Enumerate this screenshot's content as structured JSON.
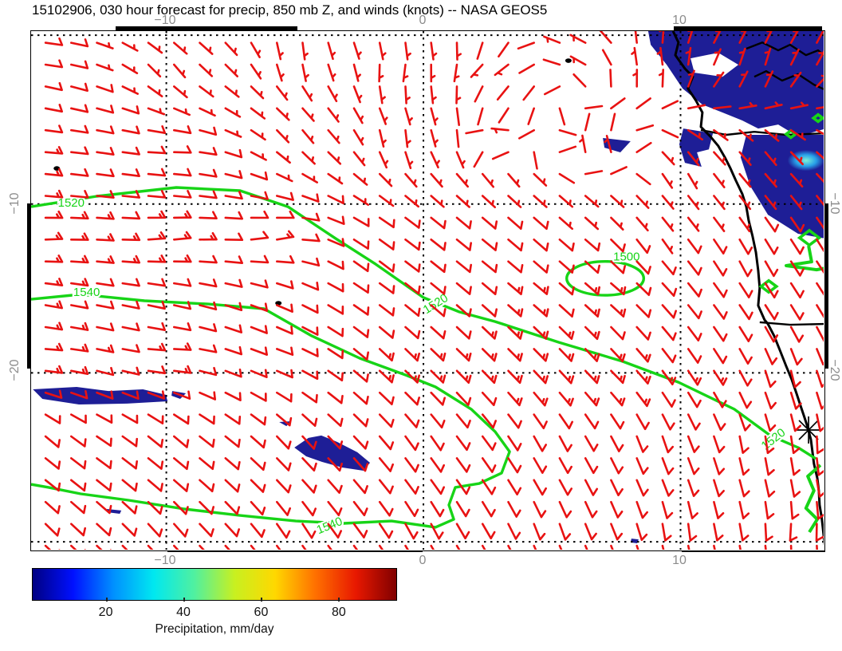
{
  "title": "15102906, 030 hour forecast for precip, 850 mb Z, and winds (knots) -- NASA GEOS5",
  "axes": {
    "x_ticks": [
      {
        "label": "−10",
        "lon": -10
      },
      {
        "label": "0",
        "lon": 0
      },
      {
        "label": "10",
        "lon": 10
      }
    ],
    "y_ticks": [
      {
        "label": "−10",
        "lat": -10
      },
      {
        "label": "−20",
        "lat": -20
      }
    ],
    "grid_lons": [
      -10,
      0,
      10
    ],
    "grid_lats": [
      0,
      -10,
      -20,
      -30
    ]
  },
  "colorbar": {
    "caption": "Precipitation, mm/day",
    "tick_values": [
      20,
      40,
      60,
      80
    ],
    "value_range": [
      1,
      95
    ],
    "gradient": [
      "#000082",
      "#0010ff",
      "#0090ff",
      "#00e8f0",
      "#50f0a0",
      "#c8f020",
      "#ffd800",
      "#ff7000",
      "#e81800",
      "#800000"
    ]
  },
  "chart_data": {
    "type": "weather-map",
    "model": "NASA GEOS5",
    "forecast_hour": "030",
    "init": "15102906",
    "fields": [
      "precipitation shading (mm/day)",
      "850 mb geopotential height contours (m)",
      "wind barbs (knots)"
    ],
    "extent": {
      "lon": [
        -15.26,
        15.66
      ],
      "lat": [
        0.24,
        -30.61
      ]
    },
    "colors": {
      "barb": "#e81212",
      "contour": "#17d417",
      "precip": "#1e1e96",
      "coast": "#000000",
      "label_gray": "#8c8c8c"
    },
    "contour_levels": [
      1500,
      1520,
      1540
    ],
    "contours": [
      {
        "level": 1520,
        "points": [
          [
            -15.26,
            -10.16
          ],
          [
            -12.71,
            -9.54
          ],
          [
            -9.61,
            -9.02
          ],
          [
            -7.13,
            -9.21
          ],
          [
            -5.27,
            -10.16
          ],
          [
            -3.41,
            -12.05
          ],
          [
            -1.86,
            -13.56
          ],
          [
            0.0,
            -15.54
          ],
          [
            1.4,
            -16.39
          ],
          [
            2.79,
            -16.96
          ],
          [
            5.27,
            -18.19
          ],
          [
            7.75,
            -19.32
          ],
          [
            9.92,
            -20.55
          ],
          [
            12.09,
            -22.15
          ],
          [
            13.49,
            -23.71
          ],
          [
            14.57,
            -24.42
          ],
          [
            15.26,
            -25.08
          ]
        ],
        "labels": [
          {
            "lon": -13.7,
            "lat": -10.15,
            "rot": 0
          },
          {
            "lon": 0.55,
            "lat": -16.1,
            "rot": -32
          },
          {
            "lon": 13.7,
            "lat": -24.1,
            "rot": -38
          }
        ]
      },
      {
        "level": 1540,
        "points": [
          [
            -15.26,
            -15.64
          ],
          [
            -13.33,
            -15.35
          ],
          [
            -10.85,
            -15.73
          ],
          [
            -8.37,
            -15.92
          ],
          [
            -6.2,
            -16.2
          ],
          [
            -4.34,
            -17.81
          ],
          [
            -2.48,
            -19.13
          ],
          [
            -0.62,
            -20.17
          ],
          [
            0.47,
            -20.83
          ],
          [
            1.86,
            -22.15
          ],
          [
            2.79,
            -23.48
          ],
          [
            3.35,
            -24.66
          ],
          [
            3.04,
            -25.93
          ],
          [
            2.17,
            -26.55
          ],
          [
            1.24,
            -26.78
          ],
          [
            0.99,
            -27.82
          ],
          [
            1.18,
            -28.67
          ],
          [
            0.47,
            -29.14
          ],
          [
            -1.24,
            -28.77
          ],
          [
            -3.1,
            -28.91
          ],
          [
            -4.96,
            -28.77
          ],
          [
            -7.13,
            -28.44
          ],
          [
            -9.3,
            -28.06
          ],
          [
            -11.47,
            -27.54
          ],
          [
            -13.33,
            -27.16
          ],
          [
            -14.58,
            -26.78
          ],
          [
            -15.26,
            -26.6
          ]
        ],
        "labels": [
          {
            "lon": -13.1,
            "lat": -15.45,
            "rot": 0
          },
          {
            "lon": -3.6,
            "lat": -29.25,
            "rot": -22
          }
        ]
      },
      {
        "level": 1500,
        "ellipse": {
          "lon": 7.07,
          "lat": -14.4,
          "rx": 1.5,
          "ry": 1.0
        },
        "labels": [
          {
            "lon": 7.9,
            "lat": -13.35,
            "rot": 0
          }
        ]
      }
    ],
    "contour_fragments": [
      {
        "points": [
          [
            14.98,
            -12.47
          ],
          [
            15.1,
            -13.42
          ],
          [
            14.11,
            -13.65
          ],
          [
            15.29,
            -13.89
          ],
          [
            15.6,
            -13.8
          ]
        ]
      },
      {
        "points": [
          [
            15.44,
            -25.46
          ],
          [
            14.95,
            -26.12
          ],
          [
            15.19,
            -26.97
          ],
          [
            14.88,
            -28.01
          ],
          [
            15.32,
            -28.67
          ],
          [
            15.01,
            -29.43
          ]
        ]
      },
      {
        "diamonds": [
          [
            15.01,
            -12.0,
            0.38
          ],
          [
            13.43,
            -14.88,
            0.3
          ],
          [
            15.35,
            -4.91,
            0.18
          ],
          [
            14.29,
            -5.86,
            0.18
          ]
        ]
      }
    ],
    "precip_patches": [
      {
        "name": "amazon-congo-north-blob",
        "points": [
          [
            8.74,
            0.24
          ],
          [
            15.66,
            0.24
          ],
          [
            15.66,
            -5.53
          ],
          [
            14.57,
            -6.0
          ],
          [
            13.8,
            -5.29
          ],
          [
            13.02,
            -5.53
          ],
          [
            12.4,
            -5.05
          ],
          [
            11.63,
            -4.58
          ],
          [
            10.85,
            -4.11
          ],
          [
            10.08,
            -3.16
          ],
          [
            9.46,
            -1.75
          ],
          [
            8.84,
            -0.57
          ]
        ],
        "hole": [
          [
            10.39,
            -1.37
          ],
          [
            11.47,
            -1.04
          ],
          [
            12.25,
            -1.75
          ],
          [
            11.63,
            -2.46
          ],
          [
            10.54,
            -2.22
          ]
        ]
      },
      {
        "name": "congo-basin-blob",
        "points": [
          [
            12.56,
            -5.9
          ],
          [
            15.66,
            -5.9
          ],
          [
            15.66,
            -12.05
          ],
          [
            14.57,
            -11.76
          ],
          [
            13.4,
            -10.63
          ],
          [
            12.71,
            -8.93
          ],
          [
            12.34,
            -7.23
          ]
        ]
      },
      {
        "name": "coastal-patch",
        "points": [
          [
            10.11,
            -5.53
          ],
          [
            11.26,
            -5.81
          ],
          [
            11.1,
            -6.76
          ],
          [
            10.64,
            -6.94
          ],
          [
            10.82,
            -7.79
          ],
          [
            10.17,
            -7.56
          ],
          [
            9.95,
            -6.47
          ]
        ]
      },
      {
        "name": "small-patch-gulf",
        "points": [
          [
            6.98,
            -6.09
          ],
          [
            8.06,
            -6.28
          ],
          [
            7.66,
            -6.94
          ],
          [
            7.04,
            -6.66
          ]
        ]
      },
      {
        "name": "west-strip",
        "points": [
          [
            -15.19,
            -20.97
          ],
          [
            -13.49,
            -20.83
          ],
          [
            -12.25,
            -21.07
          ],
          [
            -10.91,
            -20.97
          ],
          [
            -10.02,
            -21.3
          ],
          [
            -9.95,
            -21.68
          ],
          [
            -11.53,
            -21.82
          ],
          [
            -13.4,
            -21.87
          ],
          [
            -14.82,
            -21.54
          ]
        ]
      },
      {
        "name": "west-strip-bit",
        "points": [
          [
            -9.77,
            -21.07
          ],
          [
            -9.24,
            -21.21
          ],
          [
            -9.46,
            -21.54
          ],
          [
            -9.8,
            -21.35
          ]
        ]
      },
      {
        "name": "central-fish-blob",
        "points": [
          [
            -5.02,
            -24.42
          ],
          [
            -4.47,
            -23.85
          ],
          [
            -3.97,
            -23.71
          ],
          [
            -3.35,
            -24.09
          ],
          [
            -2.57,
            -24.7
          ],
          [
            -2.08,
            -25.32
          ],
          [
            -2.33,
            -25.79
          ],
          [
            -3.16,
            -25.6
          ],
          [
            -3.94,
            -25.27
          ],
          [
            -4.56,
            -24.94
          ]
        ]
      },
      {
        "name": "fish-fin",
        "points": [
          [
            -5.61,
            -22.91
          ],
          [
            -5.15,
            -22.86
          ],
          [
            -5.33,
            -23.15
          ]
        ]
      },
      {
        "name": "small-dash-sw",
        "points": [
          [
            -12.31,
            -28.06
          ],
          [
            -11.75,
            -28.15
          ],
          [
            -11.81,
            -28.34
          ],
          [
            -12.31,
            -28.25
          ]
        ]
      },
      {
        "name": "small-dot-se",
        "points": [
          [
            8.09,
            -29.81
          ],
          [
            8.37,
            -29.86
          ],
          [
            8.31,
            -30.09
          ],
          [
            8.06,
            -30.04
          ]
        ]
      }
    ],
    "precip_glow": {
      "lon": 14.88,
      "lat": -7.42,
      "rx": 0.72,
      "ry": 0.62
    },
    "coastline": [
      [
        9.71,
        0.24
      ],
      [
        9.92,
        -0.43
      ],
      [
        9.8,
        -1.18
      ],
      [
        10.17,
        -1.98
      ],
      [
        10.48,
        -2.46
      ],
      [
        10.29,
        -3.16
      ],
      [
        10.6,
        -3.87
      ],
      [
        10.85,
        -4.58
      ],
      [
        10.79,
        -5.43
      ],
      [
        11.16,
        -6.0
      ],
      [
        11.47,
        -6.57
      ],
      [
        11.72,
        -7.23
      ],
      [
        11.94,
        -7.89
      ],
      [
        12.15,
        -8.6
      ],
      [
        12.4,
        -9.4
      ],
      [
        12.56,
        -10.16
      ],
      [
        12.65,
        -10.96
      ],
      [
        12.8,
        -11.9
      ],
      [
        12.93,
        -12.85
      ],
      [
        13.02,
        -13.93
      ],
      [
        13.08,
        -14.97
      ],
      [
        13.02,
        -16.01
      ],
      [
        13.27,
        -16.86
      ],
      [
        13.4,
        -17.1
      ],
      [
        13.64,
        -17.81
      ],
      [
        13.89,
        -18.75
      ],
      [
        14.11,
        -19.6
      ],
      [
        14.33,
        -20.41
      ],
      [
        14.51,
        -21.21
      ],
      [
        14.67,
        -21.96
      ],
      [
        14.82,
        -22.63
      ],
      [
        14.95,
        -23.24
      ],
      [
        15.07,
        -23.95
      ],
      [
        15.13,
        -24.66
      ],
      [
        15.19,
        -25.37
      ],
      [
        15.32,
        -26.22
      ],
      [
        15.38,
        -27.02
      ],
      [
        15.41,
        -27.82
      ],
      [
        15.5,
        -28.67
      ],
      [
        15.56,
        -29.52
      ],
      [
        15.63,
        -30.47
      ]
    ],
    "borders": [
      [
        [
          12.56,
          -0.8
        ],
        [
          13.18,
          -0.43
        ],
        [
          13.8,
          -0.9
        ],
        [
          14.26,
          -0.57
        ],
        [
          14.88,
          -1.18
        ],
        [
          15.35,
          -0.9
        ],
        [
          15.66,
          -1.28
        ]
      ],
      [
        [
          12.87,
          -2.46
        ],
        [
          13.33,
          -2.13
        ],
        [
          13.95,
          -2.69
        ],
        [
          14.57,
          -2.31
        ],
        [
          15.19,
          -2.93
        ],
        [
          15.66,
          -3.26
        ]
      ],
      [
        [
          10.79,
          -5.62
        ],
        [
          11.78,
          -5.9
        ],
        [
          12.87,
          -5.72
        ],
        [
          14.11,
          -5.9
        ],
        [
          15.66,
          -5.81
        ]
      ],
      [
        [
          13.08,
          -17.0
        ],
        [
          14.26,
          -17.15
        ],
        [
          15.66,
          -17.1
        ]
      ]
    ],
    "islands": [
      [
        -14.26,
        -7.89
      ],
      [
        -5.64,
        -15.87
      ],
      [
        5.64,
        -1.51
      ]
    ],
    "station_marker": {
      "lon": 14.98,
      "lat": -23.38
    },
    "wind_field": {
      "units": "knots",
      "grid": {
        "lon_start": -14.7,
        "lon_step": 1.0,
        "cols": 31,
        "lat_start": -0.45,
        "lat_step": -1.295,
        "rows": 24
      },
      "control_points": [
        [
          -15,
          -1,
          -9,
          1
        ],
        [
          -10,
          -2,
          -3,
          4
        ],
        [
          -5,
          -1,
          0,
          5
        ],
        [
          -1,
          -2,
          1,
          5
        ],
        [
          3,
          -2,
          3,
          2
        ],
        [
          6,
          -1,
          4,
          -2
        ],
        [
          9,
          -2,
          1,
          -6
        ],
        [
          13,
          -2,
          -2,
          -8
        ],
        [
          15.5,
          -1,
          -4,
          -8
        ],
        [
          -15,
          -7,
          -14,
          1
        ],
        [
          -10,
          -7,
          -10,
          0
        ],
        [
          -5,
          -6,
          -3,
          4
        ],
        [
          -1,
          -6,
          0,
          5
        ],
        [
          3,
          -6,
          4,
          -1
        ],
        [
          7,
          -7,
          2,
          -6
        ],
        [
          10,
          -8,
          -2,
          4
        ],
        [
          13,
          -7,
          -4,
          5
        ],
        [
          -15,
          -12,
          -18,
          -1
        ],
        [
          -10,
          -12,
          -16,
          -2
        ],
        [
          -6,
          -12,
          -13,
          -3
        ],
        [
          -2,
          -13,
          -9,
          7
        ],
        [
          2,
          -13,
          -10,
          8
        ],
        [
          6,
          -12,
          -6,
          5
        ],
        [
          9,
          -12,
          -4,
          6
        ],
        [
          12.5,
          -13,
          -4,
          8
        ],
        [
          15,
          -12,
          -5,
          8
        ],
        [
          7,
          -15,
          -12,
          10
        ],
        [
          4,
          -15,
          -11,
          9
        ],
        [
          -15,
          -19,
          -17,
          1
        ],
        [
          -10,
          -19,
          -14,
          0
        ],
        [
          -6,
          -19,
          -12,
          4
        ],
        [
          -1,
          -19,
          -11,
          11
        ],
        [
          3,
          -19,
          -12,
          12
        ],
        [
          7,
          -20,
          -13,
          13
        ],
        [
          11,
          -20,
          -8,
          12
        ],
        [
          14,
          -20,
          -2,
          10
        ],
        [
          -15,
          -24,
          -8,
          7
        ],
        [
          -10,
          -24,
          -8,
          7
        ],
        [
          -5,
          -24,
          -7,
          8
        ],
        [
          0,
          -24,
          -6,
          9
        ],
        [
          5,
          -24,
          -5,
          10
        ],
        [
          9,
          -24,
          -3,
          10
        ],
        [
          13,
          -24,
          -1,
          10
        ],
        [
          15.5,
          -24,
          0,
          10
        ],
        [
          -15,
          -29,
          -6,
          6
        ],
        [
          -10,
          -29,
          -6,
          7
        ],
        [
          -5,
          -29,
          -5,
          8
        ],
        [
          0,
          -29,
          -4,
          8
        ],
        [
          5,
          -29,
          -3,
          9
        ],
        [
          10,
          -29,
          -1,
          10
        ],
        [
          14.5,
          -29,
          1,
          11
        ]
      ]
    }
  }
}
